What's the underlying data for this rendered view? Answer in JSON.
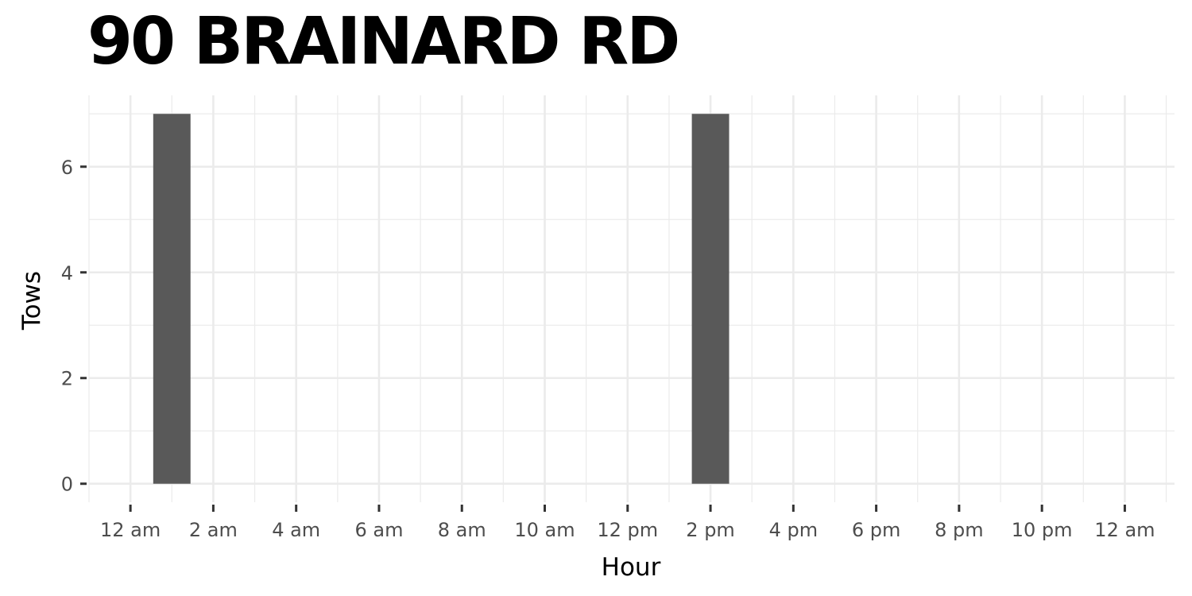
{
  "chart_data": {
    "type": "bar",
    "title": "90 BRAINARD RD",
    "xlabel": "Hour",
    "ylabel": "Tows",
    "x_tick_values": [
      0,
      2,
      4,
      6,
      8,
      10,
      12,
      14,
      16,
      18,
      20,
      22,
      24
    ],
    "x_tick_labels": [
      "12 am",
      "2 am",
      "4 am",
      "6 am",
      "8 am",
      "10 am",
      "12 pm",
      "2 pm",
      "4 pm",
      "6 pm",
      "8 pm",
      "10 pm",
      "12 am"
    ],
    "y_ticks": [
      0,
      2,
      4,
      6
    ],
    "xlim": [
      -1,
      25.2
    ],
    "ylim": [
      -0.35,
      7.35
    ],
    "bars": [
      {
        "hour": 1,
        "value": 7
      },
      {
        "hour": 14,
        "value": 7
      }
    ],
    "grid": true,
    "bar_color": "#595959",
    "grid_color": "#ebebeb"
  }
}
